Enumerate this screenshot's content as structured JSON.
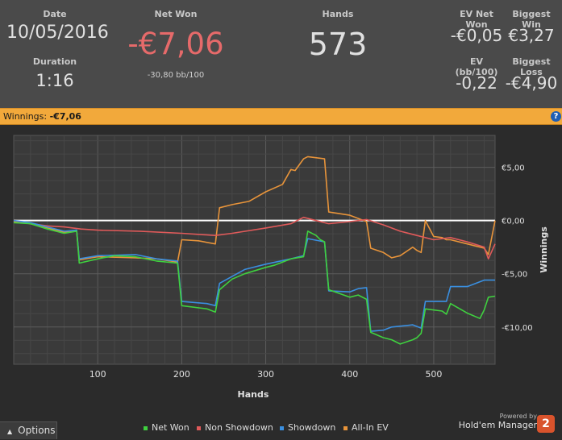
{
  "stats": {
    "date_label": "Date",
    "date_value": "10/05/2016",
    "duration_label": "Duration",
    "duration_value": "1:16",
    "netwon_label": "Net Won",
    "netwon_value": "-€7,06",
    "netwon_bb": "-30,80 bb/100",
    "hands_label": "Hands",
    "hands_value": "573",
    "evnet_label": "EV Net Won",
    "evnet_value": "-€0,05",
    "bigwin_label": "Biggest Win",
    "bigwin_value": "€3,27",
    "evbb_label": "EV (bb/100)",
    "evbb_value": "-0,22",
    "bigloss_label": "Biggest Loss",
    "bigloss_value": "-€4,90",
    "netwon_color": "#e66a6a"
  },
  "winnings_bar": {
    "label": "Winnings:",
    "value": "-€7,06",
    "help_glyph": "?",
    "help_icon": "help-icon"
  },
  "chart_data": {
    "type": "line",
    "xlabel": "Hands",
    "ylabel": "Winnings",
    "xlim": [
      0,
      573
    ],
    "ylim": [
      -13.5,
      8
    ],
    "x_ticks": [
      100,
      200,
      300,
      400,
      500
    ],
    "y_ticks": [
      {
        "value": 5,
        "label": "€5,00"
      },
      {
        "value": 0,
        "label": "€0,00"
      },
      {
        "value": -5,
        "label": "-€5,00"
      },
      {
        "value": -10,
        "label": "-€10,00"
      }
    ],
    "grid": true,
    "legend_position": "bottom",
    "series": [
      {
        "name": "Net Won",
        "color": "#3fd13f",
        "x": [
          0,
          20,
          40,
          60,
          75,
          78,
          100,
          120,
          145,
          170,
          195,
          200,
          230,
          240,
          245,
          260,
          275,
          300,
          310,
          330,
          345,
          350,
          360,
          365,
          370,
          375,
          400,
          410,
          420,
          425,
          440,
          450,
          460,
          475,
          480,
          485,
          490,
          510,
          515,
          520,
          540,
          555,
          560,
          565,
          573
        ],
        "y": [
          -0.2,
          -0.3,
          -0.8,
          -1.2,
          -1.0,
          -4.0,
          -3.6,
          -3.3,
          -3.4,
          -3.8,
          -4.0,
          -8.0,
          -8.3,
          -8.6,
          -6.5,
          -5.5,
          -5.0,
          -4.4,
          -4.2,
          -3.6,
          -3.4,
          -1.0,
          -1.4,
          -1.8,
          -2.0,
          -6.5,
          -7.2,
          -7.0,
          -7.4,
          -10.5,
          -11.0,
          -11.2,
          -11.6,
          -11.2,
          -11.0,
          -10.6,
          -8.3,
          -8.5,
          -8.8,
          -7.8,
          -8.7,
          -9.2,
          -8.4,
          -7.2,
          -7.1
        ]
      },
      {
        "name": "Non Showdown",
        "color": "#e05a5a",
        "x": [
          0,
          20,
          40,
          60,
          80,
          100,
          150,
          200,
          240,
          260,
          300,
          330,
          345,
          360,
          375,
          400,
          420,
          440,
          460,
          480,
          500,
          520,
          540,
          560,
          565,
          573
        ],
        "y": [
          0,
          -0.3,
          -0.5,
          -0.6,
          -0.8,
          -0.9,
          -1.0,
          -1.2,
          -1.4,
          -1.2,
          -0.7,
          -0.3,
          0.3,
          0,
          -0.3,
          -0.1,
          0.1,
          -0.4,
          -1.0,
          -1.4,
          -1.8,
          -1.6,
          -2.0,
          -2.5,
          -3.6,
          -2.2
        ]
      },
      {
        "name": "Showdown",
        "color": "#3a8fe0",
        "x": [
          0,
          20,
          40,
          60,
          75,
          78,
          100,
          145,
          170,
          195,
          200,
          230,
          240,
          245,
          275,
          300,
          330,
          345,
          350,
          370,
          375,
          400,
          410,
          420,
          425,
          440,
          450,
          475,
          485,
          490,
          510,
          515,
          520,
          540,
          560,
          573
        ],
        "y": [
          0,
          -0.2,
          -0.6,
          -1.0,
          -0.9,
          -3.6,
          -3.3,
          -3.2,
          -3.6,
          -3.8,
          -7.6,
          -7.8,
          -8.0,
          -5.9,
          -4.6,
          -4.1,
          -3.6,
          -3.3,
          -1.7,
          -2.0,
          -6.6,
          -6.7,
          -6.4,
          -6.3,
          -10.4,
          -10.3,
          -10.0,
          -9.8,
          -10.1,
          -7.6,
          -7.6,
          -7.6,
          -6.2,
          -6.2,
          -5.6,
          -5.6
        ]
      },
      {
        "name": "All-In EV",
        "color": "#e8943a",
        "x": [
          0,
          20,
          40,
          60,
          75,
          78,
          100,
          145,
          170,
          195,
          200,
          220,
          240,
          245,
          260,
          280,
          300,
          320,
          330,
          335,
          345,
          350,
          370,
          375,
          400,
          420,
          425,
          440,
          450,
          460,
          475,
          480,
          485,
          490,
          500,
          510,
          515,
          520,
          540,
          560,
          565,
          573
        ],
        "y": [
          -0.1,
          -0.3,
          -0.7,
          -1.1,
          -1.0,
          -3.7,
          -3.4,
          -3.5,
          -3.6,
          -3.9,
          -1.8,
          -1.9,
          -2.2,
          1.2,
          1.5,
          1.8,
          2.7,
          3.4,
          4.8,
          4.7,
          5.8,
          6.0,
          5.8,
          0.8,
          0.5,
          -0.1,
          -2.6,
          -3.0,
          -3.5,
          -3.3,
          -2.5,
          -2.8,
          -3.0,
          0.0,
          -1.5,
          -1.6,
          -1.8,
          -1.8,
          -2.2,
          -2.6,
          -3.2,
          0.0
        ]
      }
    ]
  },
  "options": {
    "label": "Options",
    "icon": "chevron-up-icon"
  },
  "brand": {
    "powered": "Powered by",
    "name": "Hold'em Manager",
    "logo_glyph": "2"
  }
}
